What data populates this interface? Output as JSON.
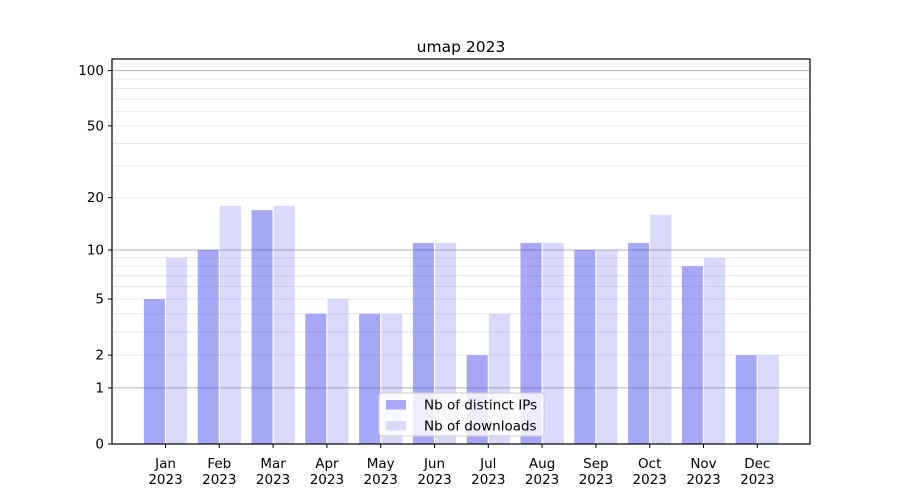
{
  "chart_data": {
    "type": "bar",
    "title": "umap 2023",
    "categories": [
      "Jan 2023",
      "Feb 2023",
      "Mar 2023",
      "Apr 2023",
      "May 2023",
      "Jun 2023",
      "Jul 2023",
      "Aug 2023",
      "Sep 2023",
      "Oct 2023",
      "Nov 2023",
      "Dec 2023"
    ],
    "x_tick_line1": [
      "Jan",
      "Feb",
      "Mar",
      "Apr",
      "May",
      "Jun",
      "Jul",
      "Aug",
      "Sep",
      "Oct",
      "Nov",
      "Dec"
    ],
    "x_tick_line2": [
      "2023",
      "2023",
      "2023",
      "2023",
      "2023",
      "2023",
      "2023",
      "2023",
      "2023",
      "2023",
      "2023",
      "2023"
    ],
    "series": [
      {
        "name": "Nb of distinct IPs",
        "values": [
          5,
          10,
          17,
          4,
          4,
          11,
          2,
          11,
          10,
          11,
          8,
          2
        ],
        "bar_color": "rgba(80,80,240,0.50)",
        "legend_swatch_color": "#a8a8f8"
      },
      {
        "name": "Nb of downloads",
        "values": [
          9,
          18,
          18,
          5,
          4,
          11,
          4,
          11,
          10,
          16,
          9,
          2
        ],
        "bar_color": "rgba(80,80,240,0.22)",
        "legend_swatch_color": "#d9d9f9"
      }
    ],
    "xlabel": "",
    "ylabel": "",
    "y_scale": "log1p",
    "y_ticks": [
      0,
      1,
      2,
      5,
      10,
      20,
      50,
      100
    ],
    "y_major_gridlines": [
      1,
      10,
      100
    ],
    "y_minor_gridlines": [
      2,
      3,
      4,
      5,
      6,
      7,
      8,
      9,
      20,
      30,
      40,
      50,
      60,
      70,
      80,
      90,
      110
    ],
    "ylim": [
      0,
      116
    ],
    "grid": true,
    "legend_position": "lower center"
  },
  "colors": {
    "background": "#ffffff",
    "spine": "#000000",
    "major_gridline": "#b2b2b2",
    "minor_gridline": "#e9e9e9",
    "tick_label": "#000000",
    "legend_background": "rgba(255,255,255,0.8)",
    "legend_border": "#cccccc"
  }
}
